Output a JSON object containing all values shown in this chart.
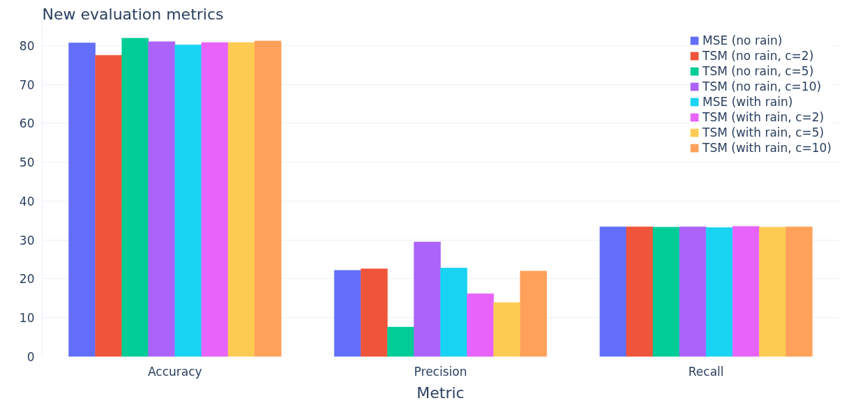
{
  "chart_data": {
    "type": "bar",
    "title": "New evaluation metrics",
    "xlabel": "Metric",
    "categories": [
      "Accuracy",
      "Precision",
      "Recall"
    ],
    "series": [
      {
        "name": "MSE (no rain)",
        "color": "#636efa",
        "values": [
          80.7,
          22.2,
          33.4
        ]
      },
      {
        "name": "TSM (no rain, c=2)",
        "color": "#ef553b",
        "values": [
          77.5,
          22.6,
          33.4
        ]
      },
      {
        "name": "TSM (no rain, c=5)",
        "color": "#00cc96",
        "values": [
          81.9,
          7.6,
          33.3
        ]
      },
      {
        "name": "TSM (no rain, c=10)",
        "color": "#ab63fa",
        "values": [
          81.0,
          29.5,
          33.4
        ]
      },
      {
        "name": "MSE (with rain)",
        "color": "#19d3f3",
        "values": [
          80.2,
          22.8,
          33.2
        ]
      },
      {
        "name": "TSM (with rain, c=2)",
        "color": "#e763fa",
        "values": [
          80.8,
          16.2,
          33.5
        ]
      },
      {
        "name": "TSM (with rain, c=5)",
        "color": "#fecb52",
        "values": [
          80.8,
          13.9,
          33.3
        ]
      },
      {
        "name": "TSM (with rain, c=10)",
        "color": "#ffa15a",
        "values": [
          81.2,
          22.0,
          33.4
        ]
      }
    ],
    "ylim": [
      0,
      85
    ],
    "yticks": [
      0,
      10,
      20,
      30,
      40,
      50,
      60,
      70,
      80
    ],
    "grid": "y",
    "legend": "top right"
  }
}
